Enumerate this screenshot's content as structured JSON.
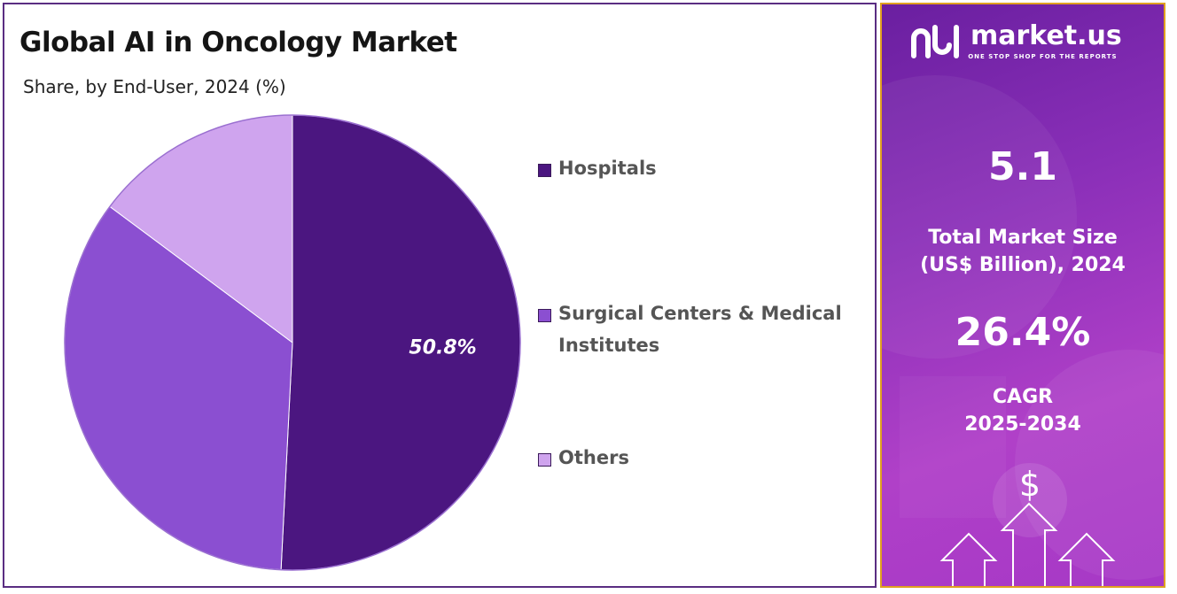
{
  "title": "Global AI in Oncology Market",
  "subtitle": "Share, by End-User, 2024 (%)",
  "chart_data": {
    "type": "pie",
    "title": "Global AI in Oncology Market",
    "subtitle": "Share, by End-User, 2024 (%)",
    "categories": [
      "Hospitals",
      "Surgical Centers & Medical Institutes",
      "Others"
    ],
    "values": [
      50.8,
      34.4,
      14.8
    ],
    "colors": [
      "#4b1680",
      "#8b4fd1",
      "#cfa4ee"
    ],
    "data_labels": [
      "50.8%"
    ],
    "legend_position": "right"
  },
  "legend": [
    {
      "label": "Hospitals",
      "color": "#4b1680"
    },
    {
      "label": "Surgical Centers & Medical Institutes",
      "color": "#8b4fd1"
    },
    {
      "label": "Others",
      "color": "#cfa4ee"
    }
  ],
  "panel": {
    "brand": "market.us",
    "tagline": "ONE STOP SHOP FOR THE REPORTS",
    "market_size_value": "5.1",
    "market_size_label_line1": "Total Market Size",
    "market_size_label_line2": "(US$ Billion), 2024",
    "cagr_value": "26.4%",
    "cagr_label_line1": "CAGR",
    "cagr_label_line2": "2025-2034",
    "icon": "dollar-arrows-icon"
  }
}
